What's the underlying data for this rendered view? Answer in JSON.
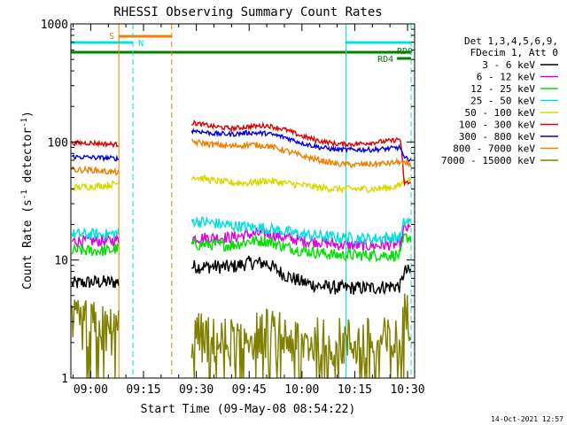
{
  "chart_data": {
    "type": "line",
    "title": "RHESSI Observing Summary Count Rates",
    "xlabel": "Start Time (09-May-08 08:54:22)",
    "ylabel_main": "Count Rate (s",
    "ylabel_sup1": "-1",
    "ylabel_mid": " detector",
    "ylabel_sup2": "-1",
    "ylabel_end": ")",
    "y_scale": "log",
    "ylim": [
      1,
      1000
    ],
    "xlim": [
      "08:54:22",
      "10:32:00"
    ],
    "x_ticks": [
      "09:00",
      "09:15",
      "09:30",
      "09:45",
      "10:00",
      "10:15",
      "10:30"
    ],
    "y_ticks": [
      "1",
      "10",
      "100",
      "1000"
    ],
    "grid": false,
    "legend": {
      "placement": "top-right",
      "header_line1": "Det 1,3,4,5,6,9,",
      "header_line2": "FDecim 1, Att 0",
      "entries": [
        {
          "label": "3 - 6 keV",
          "color": "#000000"
        },
        {
          "label": "6 - 12 keV",
          "color": "#e000e0"
        },
        {
          "label": "12 - 25 keV",
          "color": "#00e000"
        },
        {
          "label": "25 - 50 keV",
          "color": "#00e0e0"
        },
        {
          "label": "50 - 100 keV",
          "color": "#d8d800"
        },
        {
          "label": "100 - 300 keV",
          "color": "#e00000"
        },
        {
          "label": "300 - 800 keV",
          "color": "#0000e0"
        },
        {
          "label": "800 - 7000 keV",
          "color": "#f08000"
        },
        {
          "label": "7000 - 15000 keV",
          "color": "#808000"
        }
      ]
    },
    "flag_labels": {
      "s": "S",
      "n": "N",
      "rd4": "RD4",
      "rd0": "RD0"
    },
    "flag_colors": {
      "saa": "#f08000",
      "night": "#00e0e0",
      "decim": "#008000"
    },
    "night_intervals": [
      [
        "08:54:22",
        "09:12:00"
      ],
      [
        "10:12:30",
        "10:31:00"
      ]
    ],
    "saa_intervals": [
      [
        "09:08:00",
        "09:23:00"
      ]
    ],
    "decim_bars": [
      [
        "08:54:22",
        "10:31:00"
      ],
      [
        "10:27:00",
        "10:31:00"
      ]
    ],
    "vlines_solid": [
      {
        "t": "08:54:22",
        "color": "#00e0e0"
      },
      {
        "t": "09:08:00",
        "color": "#f08000"
      },
      {
        "t": "10:12:30",
        "color": "#00e0e0"
      }
    ],
    "vlines_dashed": [
      {
        "t": "09:12:00",
        "color": "#00e0e0"
      },
      {
        "t": "09:23:00",
        "color": "#f08000"
      },
      {
        "t": "10:31:00",
        "color": "#00e0e0"
      }
    ],
    "series": [
      {
        "name": "3 - 6 keV",
        "color": "#000000",
        "x": [
          "08:55",
          "09:00",
          "09:05",
          "09:08",
          "09:29",
          "09:35",
          "09:40",
          "09:45",
          "09:50",
          "09:55",
          "10:00",
          "10:05",
          "10:10",
          "10:15",
          "10:20",
          "10:25",
          "10:28",
          "10:29",
          "10:31"
        ],
        "y": [
          6.3,
          6.5,
          6.5,
          6.5,
          8.8,
          8.8,
          8.7,
          9.5,
          9.4,
          7.5,
          6.5,
          6.0,
          5.8,
          5.8,
          5.8,
          6.0,
          6.0,
          8.0,
          8.0
        ]
      },
      {
        "name": "6 - 12 keV",
        "color": "#e000e0",
        "x": [
          "08:55",
          "09:00",
          "09:05",
          "09:08",
          "09:29",
          "09:35",
          "09:40",
          "09:45",
          "09:50",
          "09:55",
          "10:00",
          "10:05",
          "10:10",
          "10:15",
          "10:20",
          "10:25",
          "10:28",
          "10:29",
          "10:31"
        ],
        "y": [
          14.5,
          14.5,
          14.5,
          14.8,
          15.3,
          15.5,
          15.5,
          16.5,
          16.8,
          15.5,
          14.5,
          14.3,
          13.5,
          13.3,
          13.2,
          13.5,
          13.5,
          18.5,
          18.5
        ]
      },
      {
        "name": "12 - 25 keV",
        "color": "#00e000",
        "x": [
          "08:55",
          "09:00",
          "09:05",
          "09:08",
          "09:29",
          "09:35",
          "09:40",
          "09:45",
          "09:50",
          "09:55",
          "10:00",
          "10:05",
          "10:10",
          "10:15",
          "10:20",
          "10:25",
          "10:28",
          "10:29",
          "10:31"
        ],
        "y": [
          12.0,
          12.0,
          12.0,
          12.5,
          13.5,
          13.5,
          13.3,
          14.5,
          14.5,
          13.0,
          12.0,
          11.5,
          11.0,
          11.0,
          11.0,
          11.0,
          11.0,
          15.5,
          15.5
        ]
      },
      {
        "name": "25 - 50 keV",
        "color": "#00e0e0",
        "x": [
          "08:55",
          "09:00",
          "09:05",
          "09:08",
          "09:29",
          "09:35",
          "09:40",
          "09:45",
          "09:50",
          "09:55",
          "10:00",
          "10:05",
          "10:10",
          "10:15",
          "10:20",
          "10:25",
          "10:28",
          "10:29",
          "10:31"
        ],
        "y": [
          16.5,
          16.5,
          16.5,
          17.0,
          21.5,
          20.5,
          19.5,
          19.0,
          18.5,
          17.5,
          16.5,
          16.0,
          15.5,
          15.3,
          15.2,
          15.5,
          15.5,
          21.0,
          21.0
        ]
      },
      {
        "name": "50 - 100 keV",
        "color": "#d8d800",
        "x": [
          "08:55",
          "09:00",
          "09:05",
          "09:08",
          "09:29",
          "09:35",
          "09:40",
          "09:45",
          "09:50",
          "09:55",
          "10:00",
          "10:05",
          "10:10",
          "10:15",
          "10:20",
          "10:25",
          "10:28",
          "10:29",
          "10:31"
        ],
        "y": [
          41,
          42,
          43,
          45,
          51,
          47,
          45,
          45,
          47,
          45,
          43,
          41,
          40,
          40,
          40,
          41,
          43,
          48,
          48
        ]
      },
      {
        "name": "100 - 300 keV",
        "color": "#e00000",
        "x": [
          "08:55",
          "09:00",
          "09:05",
          "09:08",
          "09:29",
          "09:35",
          "09:40",
          "09:45",
          "09:50",
          "09:55",
          "10:00",
          "10:05",
          "10:10",
          "10:15",
          "10:20",
          "10:25",
          "10:28",
          "10:29",
          "10:31"
        ],
        "y": [
          98,
          98,
          96,
          95,
          145,
          135,
          130,
          135,
          138,
          128,
          112,
          102,
          96,
          96,
          99,
          102,
          106,
          45,
          45
        ]
      },
      {
        "name": "300 - 800 keV",
        "color": "#0000e0",
        "x": [
          "08:55",
          "09:00",
          "09:05",
          "09:08",
          "09:29",
          "09:35",
          "09:40",
          "09:45",
          "09:50",
          "09:55",
          "10:00",
          "10:05",
          "10:10",
          "10:15",
          "10:20",
          "10:25",
          "10:28",
          "10:29",
          "10:31"
        ],
        "y": [
          75,
          74,
          73,
          72,
          125,
          118,
          116,
          120,
          118,
          110,
          98,
          90,
          86,
          86,
          86,
          88,
          90,
          72,
          72
        ]
      },
      {
        "name": "800 - 7000 keV",
        "color": "#f08000",
        "x": [
          "08:55",
          "09:00",
          "09:05",
          "09:08",
          "09:29",
          "09:35",
          "09:40",
          "09:45",
          "09:50",
          "09:55",
          "10:00",
          "10:05",
          "10:10",
          "10:15",
          "10:20",
          "10:25",
          "10:28",
          "10:29",
          "10:31"
        ],
        "y": [
          58,
          58,
          56,
          55,
          100,
          95,
          92,
          95,
          93,
          85,
          76,
          70,
          65,
          64,
          65,
          66,
          68,
          65,
          65
        ]
      },
      {
        "name": "7000 - 15000 keV",
        "color": "#808000",
        "x": [
          "08:55",
          "09:00",
          "09:05",
          "09:08",
          "09:29",
          "09:35",
          "09:40",
          "09:45",
          "09:50",
          "09:55",
          "10:00",
          "10:05",
          "10:10",
          "10:15",
          "10:20",
          "10:25",
          "10:28",
          "10:29",
          "10:31"
        ],
        "y": [
          2.8,
          2.8,
          2.5,
          2.5,
          2.3,
          2.0,
          2.0,
          2.3,
          2.4,
          2.2,
          2.0,
          2.0,
          2.0,
          2.0,
          2.0,
          2.0,
          2.0,
          3.3,
          3.3
        ]
      }
    ]
  },
  "footer": {
    "timestamp": "14-Oct-2021 12:57"
  }
}
